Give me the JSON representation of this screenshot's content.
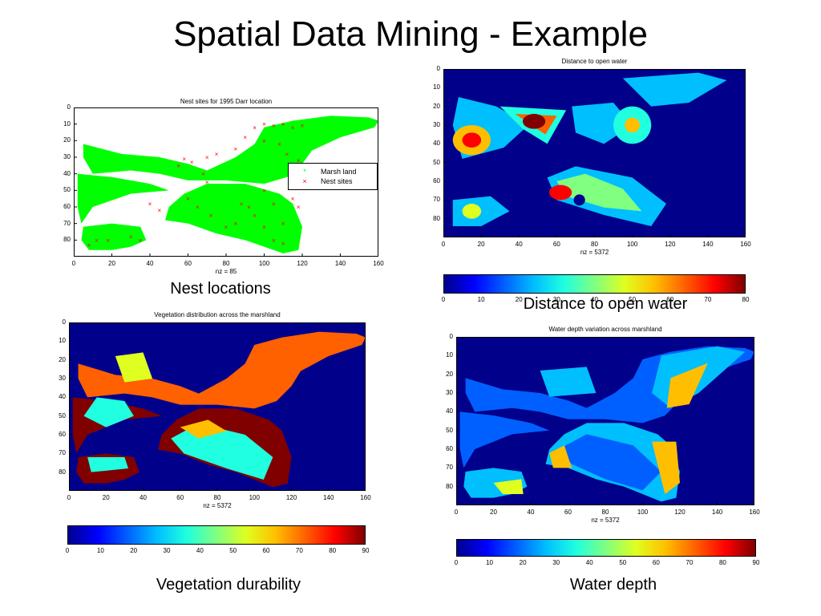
{
  "slide": {
    "title": "Spatial Data Mining - Example"
  },
  "colors": {
    "marsh": "#00ff00",
    "nest": "#ff0000",
    "field": "#00008b",
    "jet": [
      "#00008f",
      "#0000ff",
      "#0060ff",
      "#00bfff",
      "#20ffdf",
      "#80ff80",
      "#dfff20",
      "#ffbf00",
      "#ff6000",
      "#ff0000",
      "#800000"
    ]
  },
  "captions": {
    "nest": "Nest locations",
    "distance": "Distance to open water",
    "vegetation": "Vegetation durability",
    "depth": "Water depth"
  },
  "chart_data": [
    {
      "id": "nest",
      "type": "scatter",
      "title": "Nest sites for 1995 Darr location",
      "xlabel": "nz = 85",
      "xlim": [
        0,
        160
      ],
      "ylim": [
        0,
        90
      ],
      "xticks": [
        0,
        20,
        40,
        60,
        80,
        100,
        120,
        140,
        160
      ],
      "yticks": [
        0,
        10,
        20,
        30,
        40,
        50,
        60,
        70,
        80
      ],
      "legend_placement": "right",
      "series": [
        {
          "name": "Marsh land",
          "marker": "*"
        },
        {
          "name": "Nest sites",
          "marker": "x",
          "points": [
            [
              58,
              31
            ],
            [
              62,
              33
            ],
            [
              55,
              35
            ],
            [
              70,
              30
            ],
            [
              75,
              28
            ],
            [
              85,
              25
            ],
            [
              90,
              18
            ],
            [
              95,
              12
            ],
            [
              100,
              10
            ],
            [
              105,
              11
            ],
            [
              110,
              10
            ],
            [
              115,
              12
            ],
            [
              120,
              11
            ],
            [
              100,
              20
            ],
            [
              108,
              22
            ],
            [
              112,
              28
            ],
            [
              118,
              32
            ],
            [
              120,
              36
            ],
            [
              100,
              50
            ],
            [
              105,
              58
            ],
            [
              95,
              65
            ],
            [
              100,
              72
            ],
            [
              110,
              70
            ],
            [
              60,
              55
            ],
            [
              65,
              60
            ],
            [
              72,
              65
            ],
            [
              80,
              72
            ],
            [
              85,
              70
            ],
            [
              105,
              80
            ],
            [
              110,
              82
            ],
            [
              30,
              78
            ],
            [
              35,
              80
            ],
            [
              12,
              80
            ],
            [
              8,
              83
            ],
            [
              18,
              80
            ],
            [
              40,
              58
            ],
            [
              45,
              62
            ],
            [
              88,
              58
            ],
            [
              92,
              60
            ],
            [
              115,
              55
            ],
            [
              118,
              60
            ],
            [
              68,
              40
            ],
            [
              70,
              45
            ],
            [
              130,
              40
            ],
            [
              150,
              38
            ]
          ]
        }
      ]
    },
    {
      "id": "distance",
      "type": "heatmap",
      "title": "Distance to open water",
      "xlabel": "nz = 5372",
      "xlim": [
        0,
        160
      ],
      "ylim": [
        0,
        90
      ],
      "xticks": [
        0,
        20,
        40,
        60,
        80,
        100,
        120,
        140,
        160
      ],
      "yticks": [
        0,
        10,
        20,
        30,
        40,
        50,
        60,
        70,
        80
      ],
      "colorbar": {
        "min": 0,
        "max": 80,
        "ticks": [
          0,
          10,
          20,
          30,
          40,
          50,
          60,
          70,
          80
        ]
      }
    },
    {
      "id": "vegetation",
      "type": "heatmap",
      "title": "Vegetation distribution across the marshland",
      "xlabel": "nz = 5372",
      "xlim": [
        0,
        160
      ],
      "ylim": [
        0,
        90
      ],
      "xticks": [
        0,
        20,
        40,
        60,
        80,
        100,
        120,
        140,
        160
      ],
      "yticks": [
        0,
        10,
        20,
        30,
        40,
        50,
        60,
        70,
        80
      ],
      "colorbar": {
        "min": 0,
        "max": 90,
        "ticks": [
          0,
          10,
          20,
          30,
          40,
          50,
          60,
          70,
          80,
          90
        ]
      }
    },
    {
      "id": "depth",
      "type": "heatmap",
      "title": "Water depth variation across marshland",
      "xlabel": "nz = 5372",
      "xlim": [
        0,
        160
      ],
      "ylim": [
        0,
        90
      ],
      "xticks": [
        0,
        20,
        40,
        60,
        80,
        100,
        120,
        140,
        160
      ],
      "yticks": [
        0,
        10,
        20,
        30,
        40,
        50,
        60,
        70,
        80
      ],
      "colorbar": {
        "min": 0,
        "max": 90,
        "ticks": [
          0,
          10,
          20,
          30,
          40,
          50,
          60,
          70,
          80,
          90
        ]
      }
    }
  ]
}
